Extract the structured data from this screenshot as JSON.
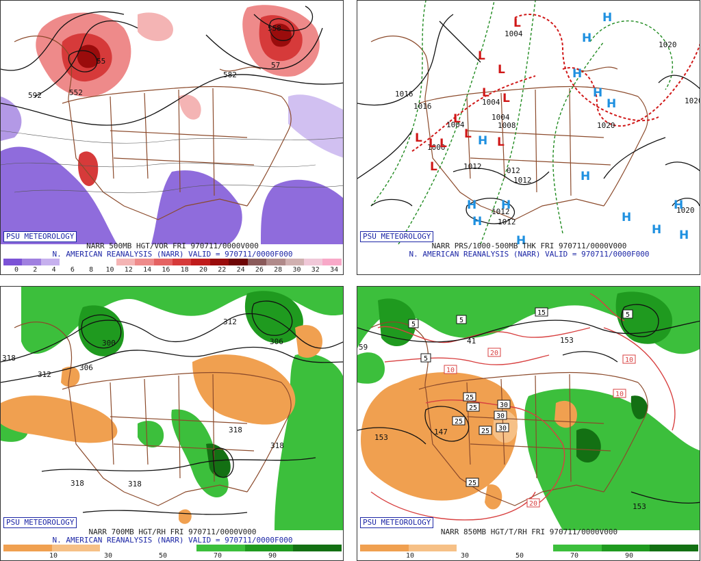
{
  "panels": [
    {
      "badge": "PSU METEOROLOGY",
      "title_line1": "NARR 500MB HGT/VOR FRI 970711/0000V000",
      "title_line2": "N. AMERICAN REANALYSIS (NARR) VALID = 970711/0000F000",
      "colorbar": {
        "colors": [
          "#7b52d6",
          "#a080e0",
          "#c6b0ee",
          "#ffffff",
          "#ffffff",
          "#ffffff",
          "#f4b4b4",
          "#ee8a8a",
          "#e46262",
          "#d63a3a",
          "#c01c1c",
          "#9a0c0c",
          "#6e0606",
          "#8a5a5a",
          "#b08a8a",
          "#d0b0b0",
          "#f0c8d8",
          "#f8a8c8"
        ],
        "ticks": [
          "0",
          "2",
          "4",
          "6",
          "8",
          "10",
          "12",
          "14",
          "16",
          "18",
          "20",
          "22",
          "24",
          "26",
          "28",
          "30",
          "32",
          "34"
        ]
      },
      "contour_labels": [
        "582",
        "55",
        "558",
        "57",
        "552",
        "592"
      ]
    },
    {
      "badge": "PSU METEOROLOGY",
      "title_line1": "NARR PRS/1000-500MB THK FRI 970711/0000V000",
      "title_line2": "N. AMERICAN REANALYSIS (NARR) VALID = 970711/0000F000",
      "pressure_labels": [
        "1004",
        "1020",
        "1016",
        "1004",
        "1004",
        "1008",
        "1004",
        "1000",
        "1012",
        "012",
        "1012",
        "1012",
        "1012",
        "1020",
        "1020",
        "1012",
        "1020"
      ],
      "lows": [
        "L",
        "L",
        "L",
        "L",
        "L",
        "L",
        "L",
        "L",
        "L",
        "L",
        "L",
        "L"
      ],
      "highs": [
        "H",
        "H",
        "H",
        "H",
        "H",
        "H",
        "H",
        "H",
        "H",
        "H",
        "H",
        "H",
        "H",
        "H",
        "H",
        "H"
      ]
    },
    {
      "badge": "PSU METEOROLOGY",
      "title_line1": "NARR 700MB HGT/RH FRI 970711/0000V000",
      "title_line2": "N. AMERICAN REANALYSIS (NARR) VALID = 970711/0000F000",
      "colorbar": {
        "colors": [
          "#f0a050",
          "#f6c086",
          "#ffffff",
          "#ffffff",
          "#3cbf3c",
          "#1f9a1f",
          "#137013"
        ],
        "ticks": [
          "10",
          "30",
          "50",
          "70",
          "90"
        ]
      },
      "contour_labels": [
        "312",
        "306",
        "300",
        "318",
        "312",
        "306",
        "318",
        "318",
        "318",
        "318"
      ]
    },
    {
      "badge": "PSU METEOROLOGY",
      "title_line1": "NARR 850MB HGT/T/RH FRI 970711/0000V000",
      "title_line2": "",
      "colorbar": {
        "colors": [
          "#f0a050",
          "#f6c086",
          "#ffffff",
          "#ffffff",
          "#3cbf3c",
          "#1f9a1f",
          "#137013"
        ],
        "ticks": [
          "10",
          "30",
          "50",
          "70",
          "90"
        ]
      },
      "temp_boxes": [
        "5",
        "5",
        "5",
        "15",
        "5",
        "10",
        "10",
        "20",
        "10",
        "25",
        "25",
        "25",
        "25",
        "30",
        "30",
        "30",
        "25",
        "20"
      ],
      "contour_labels": [
        "59",
        "41",
        "153",
        "147",
        "153",
        "153"
      ]
    }
  ]
}
